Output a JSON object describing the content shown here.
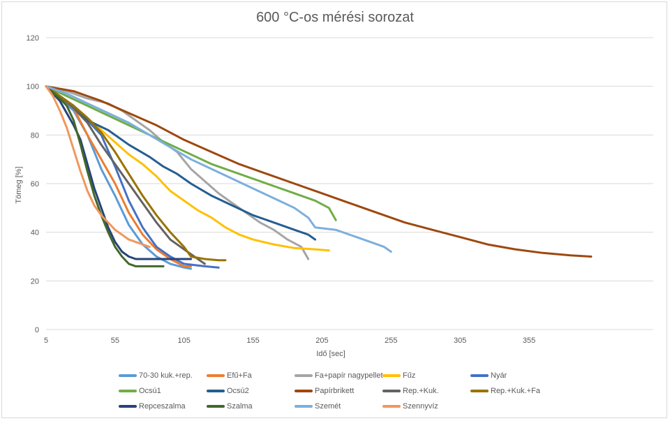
{
  "chart_data": {
    "type": "line",
    "title": "600 °C-os mérési sorozat",
    "xlabel": "Idő [sec]",
    "ylabel": "Tömeg [%]",
    "xlim": [
      5,
      445
    ],
    "ylim": [
      0,
      120
    ],
    "xticks": [
      5,
      55,
      105,
      155,
      205,
      255,
      305,
      355
    ],
    "yticks": [
      0,
      20,
      40,
      60,
      80,
      100,
      120
    ],
    "legend_position": "bottom",
    "series": [
      {
        "name": "70-30 kuk.+rep.",
        "color": "#5b9bd5",
        "points": [
          [
            5,
            100
          ],
          [
            15,
            95
          ],
          [
            25,
            90
          ],
          [
            35,
            80
          ],
          [
            45,
            66
          ],
          [
            55,
            55
          ],
          [
            65,
            43
          ],
          [
            75,
            35
          ],
          [
            85,
            30
          ],
          [
            95,
            27
          ],
          [
            105,
            25.5
          ],
          [
            110,
            25
          ]
        ]
      },
      {
        "name": "Efű+Fa",
        "color": "#ed7d31",
        "points": [
          [
            5,
            100
          ],
          [
            15,
            96
          ],
          [
            25,
            91
          ],
          [
            35,
            80
          ],
          [
            45,
            70
          ],
          [
            55,
            60
          ],
          [
            65,
            48
          ],
          [
            75,
            39
          ],
          [
            85,
            33
          ],
          [
            95,
            29
          ],
          [
            105,
            26
          ],
          [
            110,
            26
          ]
        ]
      },
      {
        "name": "Fa+papír nagypellet",
        "color": "#a5a5a5",
        "points": [
          [
            5,
            100
          ],
          [
            20,
            98
          ],
          [
            35,
            95
          ],
          [
            50,
            93
          ],
          [
            60,
            90
          ],
          [
            70,
            86
          ],
          [
            80,
            82
          ],
          [
            90,
            77
          ],
          [
            100,
            73
          ],
          [
            110,
            66
          ],
          [
            120,
            61
          ],
          [
            130,
            56
          ],
          [
            140,
            52
          ],
          [
            150,
            48
          ],
          [
            160,
            44
          ],
          [
            170,
            41
          ],
          [
            180,
            37
          ],
          [
            190,
            34
          ],
          [
            195,
            29
          ]
        ]
      },
      {
        "name": "Fűz",
        "color": "#ffc000",
        "points": [
          [
            5,
            100
          ],
          [
            15,
            96
          ],
          [
            25,
            92
          ],
          [
            35,
            87
          ],
          [
            45,
            82
          ],
          [
            55,
            77
          ],
          [
            65,
            72
          ],
          [
            75,
            68
          ],
          [
            85,
            63
          ],
          [
            95,
            57
          ],
          [
            105,
            53
          ],
          [
            115,
            49
          ],
          [
            125,
            46
          ],
          [
            135,
            42
          ],
          [
            145,
            39
          ],
          [
            155,
            37
          ],
          [
            170,
            35
          ],
          [
            185,
            33.5
          ],
          [
            200,
            33
          ],
          [
            210,
            32.5
          ]
        ]
      },
      {
        "name": "Nyár",
        "color": "#4472c4",
        "points": [
          [
            5,
            100
          ],
          [
            15,
            96
          ],
          [
            25,
            92
          ],
          [
            35,
            86
          ],
          [
            45,
            80
          ],
          [
            55,
            67
          ],
          [
            65,
            53
          ],
          [
            75,
            42
          ],
          [
            85,
            34
          ],
          [
            95,
            30
          ],
          [
            105,
            27
          ],
          [
            120,
            26
          ],
          [
            130,
            25.5
          ]
        ]
      },
      {
        "name": "Ocsú1",
        "color": "#70ad47",
        "points": [
          [
            5,
            100
          ],
          [
            20,
            96
          ],
          [
            35,
            92
          ],
          [
            50,
            88
          ],
          [
            65,
            84
          ],
          [
            80,
            80
          ],
          [
            95,
            76
          ],
          [
            110,
            72
          ],
          [
            125,
            68
          ],
          [
            140,
            65
          ],
          [
            155,
            62
          ],
          [
            170,
            59
          ],
          [
            185,
            56
          ],
          [
            200,
            53
          ],
          [
            210,
            50
          ],
          [
            215,
            45
          ]
        ]
      },
      {
        "name": "Ocsú2",
        "color": "#255e91",
        "points": [
          [
            5,
            100
          ],
          [
            20,
            94
          ],
          [
            35,
            86
          ],
          [
            50,
            82
          ],
          [
            65,
            76
          ],
          [
            80,
            71
          ],
          [
            90,
            67
          ],
          [
            100,
            64
          ],
          [
            110,
            60
          ],
          [
            125,
            55
          ],
          [
            140,
            51
          ],
          [
            155,
            47
          ],
          [
            170,
            44
          ],
          [
            185,
            41
          ],
          [
            195,
            39
          ],
          [
            200,
            37
          ]
        ]
      },
      {
        "name": "Papírbrikett",
        "color": "#9e480e",
        "points": [
          [
            5,
            100
          ],
          [
            25,
            98
          ],
          [
            45,
            94
          ],
          [
            65,
            89
          ],
          [
            85,
            84
          ],
          [
            105,
            78
          ],
          [
            125,
            73
          ],
          [
            145,
            68
          ],
          [
            165,
            64
          ],
          [
            185,
            60
          ],
          [
            205,
            56
          ],
          [
            225,
            52
          ],
          [
            245,
            48
          ],
          [
            265,
            44
          ],
          [
            285,
            41
          ],
          [
            305,
            38
          ],
          [
            325,
            35
          ],
          [
            345,
            33
          ],
          [
            365,
            31.5
          ],
          [
            385,
            30.5
          ],
          [
            400,
            30
          ]
        ]
      },
      {
        "name": "Rep.+Kuk.",
        "color": "#636363",
        "points": [
          [
            5,
            100
          ],
          [
            15,
            96
          ],
          [
            25,
            91
          ],
          [
            35,
            85
          ],
          [
            45,
            76
          ],
          [
            55,
            68
          ],
          [
            65,
            60
          ],
          [
            75,
            52
          ],
          [
            85,
            44
          ],
          [
            95,
            37
          ],
          [
            105,
            33
          ],
          [
            115,
            29
          ],
          [
            120,
            27
          ]
        ]
      },
      {
        "name": "Rep.+Kuk.+Fa",
        "color": "#997300",
        "points": [
          [
            5,
            100
          ],
          [
            15,
            96
          ],
          [
            25,
            92
          ],
          [
            35,
            87
          ],
          [
            45,
            81
          ],
          [
            55,
            73
          ],
          [
            65,
            64
          ],
          [
            75,
            55
          ],
          [
            85,
            47
          ],
          [
            95,
            40
          ],
          [
            105,
            34
          ],
          [
            110,
            30
          ],
          [
            120,
            29
          ],
          [
            130,
            28.5
          ],
          [
            135,
            28.5
          ]
        ]
      },
      {
        "name": "Repceszalma",
        "color": "#264478",
        "points": [
          [
            5,
            100
          ],
          [
            15,
            94
          ],
          [
            25,
            84
          ],
          [
            30,
            78
          ],
          [
            35,
            68
          ],
          [
            40,
            58
          ],
          [
            45,
            50
          ],
          [
            50,
            42
          ],
          [
            55,
            36
          ],
          [
            60,
            32
          ],
          [
            65,
            30
          ],
          [
            70,
            29
          ],
          [
            80,
            29
          ],
          [
            90,
            29
          ],
          [
            100,
            29
          ],
          [
            110,
            29
          ]
        ]
      },
      {
        "name": "Szalma",
        "color": "#43682b",
        "points": [
          [
            5,
            100
          ],
          [
            15,
            95
          ],
          [
            20,
            92
          ],
          [
            25,
            86
          ],
          [
            30,
            76
          ],
          [
            35,
            65
          ],
          [
            40,
            55
          ],
          [
            45,
            47
          ],
          [
            50,
            40
          ],
          [
            55,
            34
          ],
          [
            60,
            30
          ],
          [
            65,
            27
          ],
          [
            70,
            26
          ],
          [
            80,
            26
          ],
          [
            90,
            26
          ]
        ]
      },
      {
        "name": "Szemét",
        "color": "#7cafdd",
        "points": [
          [
            5,
            100
          ],
          [
            20,
            97
          ],
          [
            35,
            93
          ],
          [
            50,
            89
          ],
          [
            65,
            85
          ],
          [
            80,
            80
          ],
          [
            95,
            75
          ],
          [
            110,
            70
          ],
          [
            125,
            66
          ],
          [
            140,
            62
          ],
          [
            155,
            58
          ],
          [
            170,
            54
          ],
          [
            185,
            50
          ],
          [
            195,
            46
          ],
          [
            200,
            42
          ],
          [
            215,
            41
          ],
          [
            230,
            38
          ],
          [
            240,
            36
          ],
          [
            250,
            34
          ],
          [
            255,
            32
          ]
        ]
      },
      {
        "name": "Szennyvíz",
        "color": "#f1975a",
        "points": [
          [
            5,
            100
          ],
          [
            10,
            96
          ],
          [
            15,
            90
          ],
          [
            20,
            83
          ],
          [
            25,
            74
          ],
          [
            30,
            65
          ],
          [
            35,
            57
          ],
          [
            40,
            51
          ],
          [
            45,
            47
          ],
          [
            50,
            44
          ],
          [
            55,
            41
          ],
          [
            60,
            39
          ],
          [
            65,
            37
          ],
          [
            70,
            36
          ],
          [
            75,
            35
          ],
          [
            80,
            34
          ]
        ]
      }
    ]
  }
}
